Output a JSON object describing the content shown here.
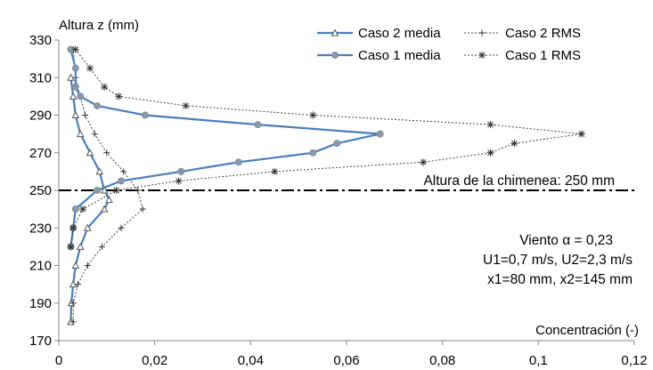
{
  "chart_data": {
    "type": "line",
    "ylabel": "Altura z (mm)",
    "xlabel": "Concentración (-)",
    "xlim": [
      0,
      0.12
    ],
    "ylim": [
      170,
      330
    ],
    "xticks": [
      "0",
      "0,02",
      "0,04",
      "0,06",
      "0,08",
      "0,1",
      "0,12"
    ],
    "yticks": [
      "170",
      "190",
      "210",
      "230",
      "250",
      "270",
      "290",
      "310",
      "330"
    ],
    "grid": false,
    "legend_position": "top-right",
    "reference_line": {
      "y": 250,
      "label": "Altura de la chimenea: 250 mm"
    },
    "annotations": [
      "Viento α = 0,23",
      "U1=0,7 m/s, U2=2,3 m/s",
      "x1=80 mm, x2=145 mm"
    ],
    "series": [
      {
        "name": "Caso 2 media",
        "color": "#4a7ebb",
        "marker": "triangle",
        "points": [
          [
            0.0025,
            180
          ],
          [
            0.0026,
            190
          ],
          [
            0.003,
            200
          ],
          [
            0.0035,
            210
          ],
          [
            0.0045,
            220
          ],
          [
            0.006,
            230
          ],
          [
            0.0095,
            240
          ],
          [
            0.0105,
            245
          ],
          [
            0.0095,
            250
          ],
          [
            0.0085,
            260
          ],
          [
            0.0065,
            270
          ],
          [
            0.0045,
            280
          ],
          [
            0.0035,
            290
          ],
          [
            0.003,
            300
          ],
          [
            0.0025,
            310
          ]
        ]
      },
      {
        "name": "Caso 2 RMS",
        "color": "#555555",
        "marker": "plus",
        "points": [
          [
            0.003,
            180
          ],
          [
            0.003,
            190
          ],
          [
            0.004,
            200
          ],
          [
            0.006,
            210
          ],
          [
            0.009,
            220
          ],
          [
            0.013,
            230
          ],
          [
            0.0175,
            240
          ],
          [
            0.0165,
            250
          ],
          [
            0.0135,
            260
          ],
          [
            0.01,
            270
          ],
          [
            0.0075,
            280
          ],
          [
            0.0055,
            290
          ],
          [
            0.0045,
            300
          ],
          [
            0.0035,
            310
          ],
          [
            0.003,
            325
          ]
        ]
      },
      {
        "name": "Caso 1 media",
        "color": "#8a9aa8",
        "marker": "circle",
        "points": [
          [
            0.0025,
            220
          ],
          [
            0.003,
            230
          ],
          [
            0.0035,
            240
          ],
          [
            0.008,
            250
          ],
          [
            0.013,
            255
          ],
          [
            0.0255,
            260
          ],
          [
            0.0375,
            265
          ],
          [
            0.053,
            270
          ],
          [
            0.058,
            275
          ],
          [
            0.067,
            280
          ],
          [
            0.0415,
            285
          ],
          [
            0.018,
            290
          ],
          [
            0.008,
            295
          ],
          [
            0.0045,
            300
          ],
          [
            0.0035,
            305
          ],
          [
            0.0035,
            315
          ],
          [
            0.0025,
            325
          ]
        ]
      },
      {
        "name": "Caso 1 RMS",
        "color": "#555555",
        "marker": "star",
        "points": [
          [
            0.0025,
            220
          ],
          [
            0.003,
            230
          ],
          [
            0.005,
            240
          ],
          [
            0.012,
            250
          ],
          [
            0.025,
            255
          ],
          [
            0.045,
            260
          ],
          [
            0.076,
            265
          ],
          [
            0.09,
            270
          ],
          [
            0.095,
            275
          ],
          [
            0.109,
            280
          ],
          [
            0.09,
            285
          ],
          [
            0.053,
            290
          ],
          [
            0.0265,
            295
          ],
          [
            0.0125,
            300
          ],
          [
            0.0095,
            305
          ],
          [
            0.0065,
            315
          ],
          [
            0.0035,
            325
          ]
        ]
      }
    ]
  }
}
